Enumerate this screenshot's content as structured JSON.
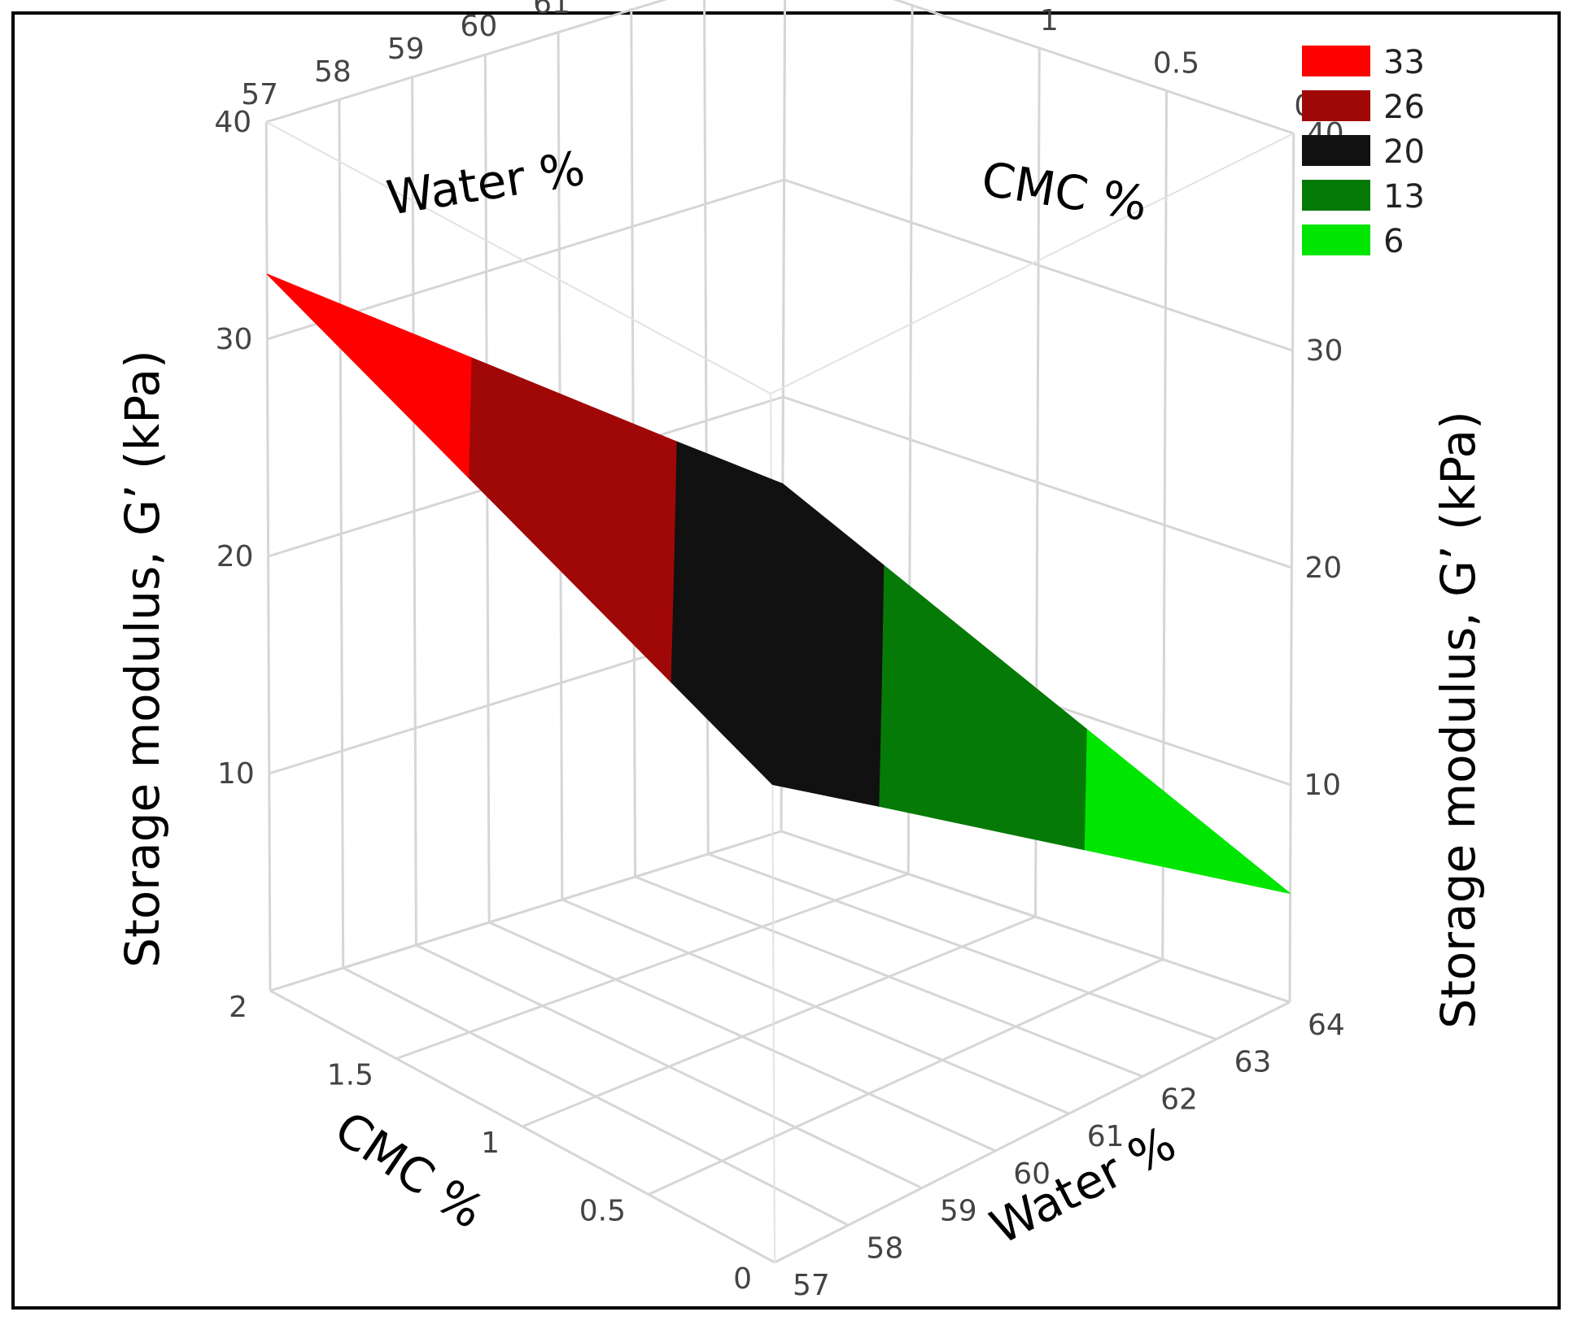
{
  "chart_data": {
    "type": "surface3d",
    "title": "",
    "x_axis": {
      "label": "Water %",
      "ticks": [
        "57",
        "58",
        "59",
        "60",
        "61",
        "62",
        "63",
        "64"
      ],
      "range": [
        57,
        64
      ]
    },
    "y_axis": {
      "label": "CMC %",
      "ticks": [
        "2",
        "1.5",
        "1",
        "0.5",
        "0"
      ],
      "range": [
        0,
        2
      ]
    },
    "z_axis": {
      "label": "Storage modulus, G’ (kPa)",
      "ticks": [
        "10",
        "20",
        "30",
        "40"
      ],
      "range": [
        0,
        40
      ]
    },
    "surface": {
      "corners": [
        {
          "water": 57,
          "cmc": 2,
          "g_prime": 33
        },
        {
          "water": 57,
          "cmc": 0,
          "g_prime": 22
        },
        {
          "water": 64,
          "cmc": 2,
          "g_prime": 16
        },
        {
          "water": 64,
          "cmc": 0,
          "g_prime": 5
        }
      ]
    },
    "legend": {
      "position": "top-right",
      "entries": [
        {
          "label": "33",
          "color": "#ff0000"
        },
        {
          "label": "26",
          "color": "#a00808"
        },
        {
          "label": "20",
          "color": "#111111"
        },
        {
          "label": "13",
          "color": "#067a06"
        },
        {
          "label": "6",
          "color": "#00e600"
        }
      ]
    },
    "band_colors": [
      "#ff0000",
      "#a00808",
      "#111111",
      "#067a06",
      "#00e600"
    ]
  }
}
